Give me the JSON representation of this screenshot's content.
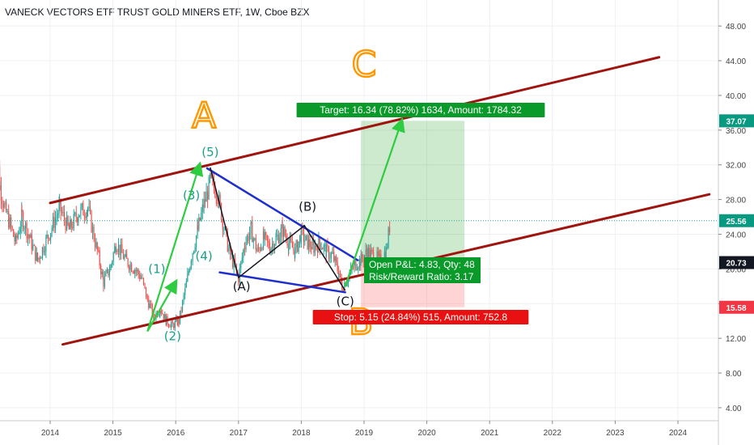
{
  "chart_data": {
    "type": "line",
    "title": "VANECK VECTORS ETF TRUST GOLD MINERS ETF, 1W, Cboe BZX",
    "x_ticks": [
      "2014",
      "2015",
      "2016",
      "2017",
      "2018",
      "2019",
      "2020",
      "2021",
      "2022",
      "2023",
      "2024"
    ],
    "y_ticks": [
      "48.00",
      "44.00",
      "40.00",
      "36.00",
      "32.00",
      "28.00",
      "24.00",
      "20.00",
      "16.00",
      "12.00",
      "8.00",
      "4.00"
    ],
    "ylim": [
      2.5,
      51
    ],
    "price_series": [
      [
        2013.1,
        38.0
      ],
      [
        2013.2,
        29.5
      ],
      [
        2013.3,
        26.5
      ],
      [
        2013.45,
        23.0
      ],
      [
        2013.55,
        26.0
      ],
      [
        2013.65,
        24.0
      ],
      [
        2013.8,
        21.0
      ],
      [
        2013.95,
        23.5
      ],
      [
        2014.15,
        27.0
      ],
      [
        2014.3,
        24.5
      ],
      [
        2014.45,
        26.5
      ],
      [
        2014.6,
        27.0
      ],
      [
        2014.75,
        22.0
      ],
      [
        2014.85,
        18.5
      ],
      [
        2014.95,
        20.0
      ],
      [
        2015.05,
        23.0
      ],
      [
        2015.2,
        21.0
      ],
      [
        2015.35,
        20.0
      ],
      [
        2015.45,
        19.0
      ],
      [
        2015.55,
        16.5
      ],
      [
        2015.65,
        14.5
      ],
      [
        2015.75,
        15.5
      ],
      [
        2015.85,
        14.0
      ],
      [
        2015.95,
        13.5
      ],
      [
        2016.05,
        14.0
      ],
      [
        2016.15,
        17.5
      ],
      [
        2016.25,
        21.5
      ],
      [
        2016.35,
        24.5
      ],
      [
        2016.45,
        27.5
      ],
      [
        2016.55,
        30.0
      ],
      [
        2016.65,
        29.0
      ],
      [
        2016.75,
        25.5
      ],
      [
        2016.85,
        22.0
      ],
      [
        2016.95,
        20.0
      ],
      [
        2017.0,
        19.0
      ],
      [
        2017.1,
        23.0
      ],
      [
        2017.2,
        24.5
      ],
      [
        2017.3,
        22.0
      ],
      [
        2017.4,
        23.5
      ],
      [
        2017.5,
        22.5
      ],
      [
        2017.6,
        23.5
      ],
      [
        2017.7,
        24.5
      ],
      [
        2017.8,
        23.0
      ],
      [
        2017.9,
        22.0
      ],
      [
        2018.0,
        24.0
      ],
      [
        2018.1,
        23.0
      ],
      [
        2018.2,
        22.5
      ],
      [
        2018.3,
        23.0
      ],
      [
        2018.4,
        22.0
      ],
      [
        2018.5,
        21.5
      ],
      [
        2018.6,
        19.5
      ],
      [
        2018.65,
        18.0
      ],
      [
        2018.75,
        19.0
      ],
      [
        2018.85,
        20.5
      ],
      [
        2018.95,
        21.0
      ],
      [
        2019.05,
        22.0
      ],
      [
        2019.15,
        21.5
      ],
      [
        2019.25,
        21.0
      ],
      [
        2019.35,
        22.0
      ],
      [
        2019.42,
        25.56
      ]
    ],
    "last_price": 25.56,
    "channel_upper": [
      [
        2014.0,
        27.6
      ],
      [
        2023.7,
        44.4
      ]
    ],
    "channel_lower": [
      [
        2014.2,
        11.3
      ],
      [
        2024.5,
        28.6
      ]
    ],
    "triangle_upper": [
      [
        2016.5,
        31.6
      ],
      [
        2018.9,
        21.0
      ]
    ],
    "triangle_lower": [
      [
        2016.7,
        19.6
      ],
      [
        2018.7,
        17.3
      ]
    ],
    "abc_path": [
      [
        2016.55,
        31.7
      ],
      [
        2017.0,
        19.0
      ],
      [
        2018.05,
        25.0
      ],
      [
        2018.7,
        17.5
      ]
    ],
    "wave_labels": [
      {
        "text": "(1)",
        "x": 2015.7,
        "y": 19.5
      },
      {
        "text": "(2)",
        "x": 2015.95,
        "y": 11.8
      },
      {
        "text": "(3)",
        "x": 2016.25,
        "y": 28.0
      },
      {
        "text": "(4)",
        "x": 2016.45,
        "y": 21.0
      },
      {
        "text": "(5)",
        "x": 2016.55,
        "y": 33.0
      },
      {
        "text": "(A)",
        "x": 2017.05,
        "y": 17.5
      },
      {
        "text": "(B)",
        "x": 2018.1,
        "y": 26.7
      },
      {
        "text": "(C)",
        "x": 2018.7,
        "y": 15.8
      }
    ],
    "hand_labels": [
      {
        "text": "A",
        "x": 2016.45,
        "y": 36.3
      },
      {
        "text": "C",
        "x": 2019.0,
        "y": 42.2
      },
      {
        "text": "B",
        "x": 2018.95,
        "y": 12.5
      }
    ],
    "green_arrows": [
      [
        [
          2015.55,
          12.8
        ],
        [
          2016.0,
          18.5
        ]
      ],
      [
        [
          2015.55,
          12.8
        ],
        [
          2016.38,
          32.0
        ]
      ],
      [
        [
          2018.7,
          18.0
        ],
        [
          2019.6,
          37.07
        ]
      ]
    ],
    "position": {
      "entry": 20.73,
      "target": 37.07,
      "stop": 15.58,
      "x_start": 2018.95,
      "x_end": 2020.6
    },
    "target_label": "Target: 16.34 (78.82%) 1634, Amount: 1784.32",
    "stop_label": "Stop: 5.15 (24.84%) 515, Amount: 752.8",
    "stop_label_visible": "Stop: 5.15 (24.84%) 515, Amount: 752.8",
    "pnl_label": "Open P&L: 4.83, Qty: 48",
    "rr_label": "Risk/Reward Ratio: 3.17",
    "price_badges": [
      {
        "value": "37.07",
        "color": "#089981"
      },
      {
        "value": "25.56",
        "color": "#089981"
      },
      {
        "value": "20.73",
        "color": "#131722"
      },
      {
        "value": "15.58",
        "color": "#f23645"
      }
    ],
    "colors": {
      "channel": "#a0140f",
      "triangle": "#1f2fcf",
      "abc": "#131722",
      "arrows": "#2ecc40",
      "wave_green": "#1aa18a",
      "hand": "#ff9800",
      "profit_zone": "rgba(76,175,80,0.28)",
      "loss_zone": "rgba(255,82,82,0.25)",
      "target_box": "#0a9a2a",
      "stop_box": "#e81010",
      "candle_up": "#26a69a",
      "candle_down": "#ef5350"
    },
    "grid": true
  }
}
